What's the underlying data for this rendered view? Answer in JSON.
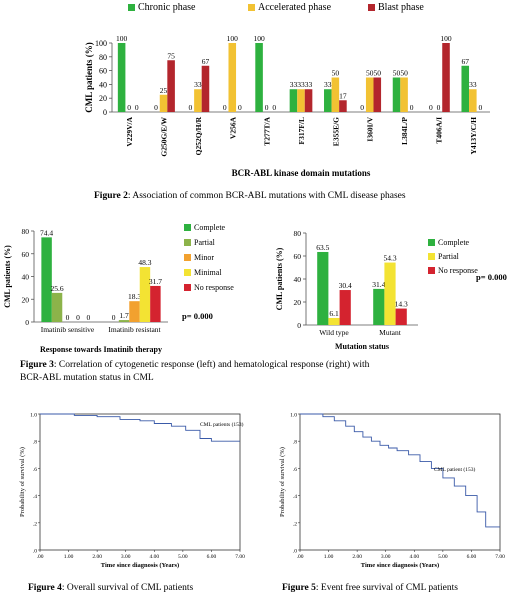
{
  "figure2": {
    "caption_label": "Figure 2",
    "caption_text": ": Association of common BCR-ABL mutations with CML disease phases",
    "chart_data": {
      "type": "bar",
      "ylabel": "CML patients (%)",
      "xlabel": "BCR-ABL kinase domain mutations",
      "ylim": [
        0,
        100
      ],
      "yticks": [
        "0",
        "20",
        "40",
        "60",
        "80",
        "100"
      ],
      "categories": [
        "V229V/A",
        "G250G/E/W",
        "Q252Q/H/R",
        "V256A",
        "T277T/A",
        "F317F/L",
        "E355E/G",
        "I360I/V",
        "L384L/P",
        "T406A/I",
        "Y413Y/C/H"
      ],
      "series": [
        {
          "name": "Chronic phase",
          "color": "#2eb13f",
          "values": [
            100,
            0,
            0,
            0,
            100,
            33,
            33,
            0,
            50,
            0,
            67
          ],
          "labels": [
            "100",
            "0",
            "0",
            "0",
            "100",
            "33",
            "33",
            "0",
            "50",
            "0",
            "67"
          ]
        },
        {
          "name": "Accelerated phase",
          "color": "#f2c233",
          "values": [
            0,
            25,
            33,
            100,
            0,
            33,
            50,
            50,
            50,
            0,
            33
          ],
          "labels": [
            "0",
            "25",
            "33",
            "100",
            "0",
            "33",
            "50",
            "50",
            "50",
            "0",
            "33"
          ]
        },
        {
          "name": "Blast phase",
          "color": "#b3262d",
          "values": [
            0,
            75,
            67,
            0,
            0,
            33,
            17,
            50,
            0,
            100,
            0
          ],
          "labels": [
            "0",
            "75",
            "67",
            "0",
            "0",
            "33",
            "17",
            "50",
            "0",
            "100",
            "0"
          ]
        }
      ]
    }
  },
  "figure3": {
    "caption_label": "Figure 3",
    "caption_line1": ": Correlation of cytogenetic response (left) and hematological response (right) with",
    "caption_line2": "BCR-ABL mutation status in CML",
    "left_p_value": "p= 0.000",
    "right_p_value": "p= 0.000",
    "chart_data": [
      {
        "type": "bar",
        "ylabel": "CML patients (%)",
        "xlabel": "Response towards Imatinib therapy",
        "ylim": [
          0,
          80
        ],
        "yticks": [
          "0",
          "20",
          "40",
          "60",
          "80"
        ],
        "categories": [
          "Imatinib sensitive",
          "Imatinib resistant"
        ],
        "series": [
          {
            "name": "Complete",
            "color": "#2eb13f",
            "values": [
              74.4,
              0
            ],
            "labels": [
              "74.4",
              "0"
            ]
          },
          {
            "name": "Partial",
            "color": "#8cb34a",
            "values": [
              25.6,
              1.7
            ],
            "labels": [
              "25.6",
              "1.7"
            ]
          },
          {
            "name": "Minor",
            "color": "#f2a12f",
            "values": [
              0,
              18.3
            ],
            "labels": [
              "0",
              "18.3"
            ]
          },
          {
            "name": "Minimal",
            "color": "#f3e333",
            "values": [
              0,
              48.3
            ],
            "labels": [
              "0",
              "48.3"
            ]
          },
          {
            "name": "No response",
            "color": "#d4232f",
            "values": [
              0,
              31.7
            ],
            "labels": [
              "0",
              "31.7"
            ]
          }
        ]
      },
      {
        "type": "bar",
        "ylabel": "CML patients (%)",
        "xlabel": "Mutation status",
        "ylim": [
          0,
          80
        ],
        "yticks": [
          "0",
          "20",
          "40",
          "60",
          "80"
        ],
        "categories": [
          "Wild type",
          "Mutant"
        ],
        "series": [
          {
            "name": "Complete",
            "color": "#2eb13f",
            "values": [
              63.5,
              31.4
            ],
            "labels": [
              "63.5",
              "31.4"
            ]
          },
          {
            "name": "Partial",
            "color": "#f3e333",
            "values": [
              6.1,
              54.3
            ],
            "labels": [
              "6.1",
              "54.3"
            ]
          },
          {
            "name": "No response",
            "color": "#d4232f",
            "values": [
              30.4,
              14.3
            ],
            "labels": [
              "30.4",
              "14.3"
            ]
          }
        ]
      }
    ]
  },
  "figure4": {
    "caption_label": "Figure 4",
    "caption_text": ": Overall survival of  CML patients",
    "chart_data": {
      "type": "line",
      "ylabel": "Probability of survival (%)",
      "xlabel": "Time since diagnosis (Years)",
      "xlim": [
        0,
        7
      ],
      "ylim": [
        0,
        1
      ],
      "xticks": [
        ".00",
        "1.00",
        "2.00",
        "3.00",
        "4.00",
        "5.00",
        "6.00",
        "7.00"
      ],
      "yticks": [
        ".0",
        ".2",
        ".4",
        ".6",
        ".8",
        "1.0"
      ],
      "annotation": "CML patients (153)",
      "x": [
        0,
        1.2,
        1.2,
        2.0,
        2.0,
        2.8,
        2.8,
        3.5,
        3.5,
        4.0,
        4.0,
        4.6,
        4.6,
        5.1,
        5.1,
        5.6,
        5.6,
        6.0,
        6.0,
        7.0
      ],
      "y": [
        1.0,
        1.0,
        0.99,
        0.99,
        0.98,
        0.98,
        0.96,
        0.96,
        0.95,
        0.95,
        0.93,
        0.93,
        0.91,
        0.91,
        0.88,
        0.88,
        0.82,
        0.82,
        0.8,
        0.8
      ]
    }
  },
  "figure5": {
    "caption_label": "Figure 5",
    "caption_text": ": Event free survival of  CML patients",
    "chart_data": {
      "type": "line",
      "ylabel": "Probability of survival (%)",
      "xlabel": "Time since diagnosis (Years)",
      "xlim": [
        0,
        7
      ],
      "ylim": [
        0,
        1
      ],
      "xticks": [
        ".00",
        "1.00",
        "2.00",
        "3.00",
        "4.00",
        "5.00",
        "6.00",
        "7.00"
      ],
      "yticks": [
        ".0",
        ".2",
        ".4",
        ".6",
        ".8",
        "1.0"
      ],
      "annotation": "CML patient (153)",
      "x": [
        0,
        0.8,
        0.8,
        1.2,
        1.2,
        1.6,
        1.6,
        1.9,
        1.9,
        2.2,
        2.2,
        2.5,
        2.5,
        2.8,
        2.8,
        3.1,
        3.1,
        3.4,
        3.4,
        3.8,
        3.8,
        4.2,
        4.2,
        4.6,
        4.6,
        5.0,
        5.0,
        5.4,
        5.4,
        5.8,
        5.8,
        6.2,
        6.2,
        6.5,
        6.5,
        7.0
      ],
      "y": [
        1.0,
        1.0,
        0.98,
        0.98,
        0.95,
        0.95,
        0.91,
        0.91,
        0.87,
        0.87,
        0.83,
        0.83,
        0.8,
        0.8,
        0.77,
        0.77,
        0.75,
        0.75,
        0.73,
        0.73,
        0.7,
        0.7,
        0.65,
        0.65,
        0.6,
        0.6,
        0.53,
        0.53,
        0.47,
        0.47,
        0.4,
        0.4,
        0.28,
        0.28,
        0.17,
        0.17
      ]
    }
  }
}
